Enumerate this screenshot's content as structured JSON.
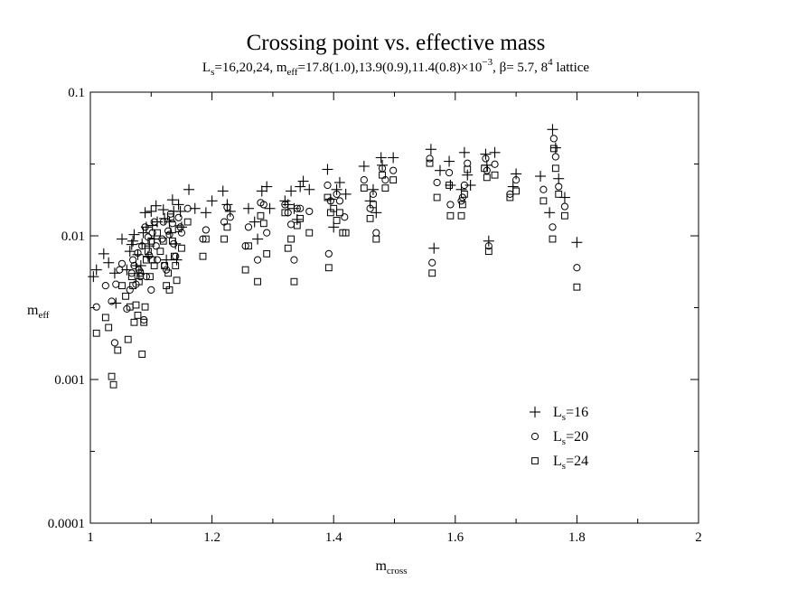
{
  "chart_data": {
    "type": "scatter",
    "title": "Crossing point vs. effective mass",
    "subtitle": {
      "p1": "L",
      "p1_sub": "s",
      "p2": "=16,20,24, m",
      "p2_sub": "eff",
      "p3": "=17.8(1.0),13.9(0.9),11.4(0.8)×10",
      "p3_sup": "−3",
      "p4": ", β= 5.7, 8",
      "p4_sup": "4",
      "p5": " lattice"
    },
    "xlabel": {
      "main": "m",
      "sub": "cross"
    },
    "ylabel": {
      "main": "m",
      "sub": "eff"
    },
    "x_scale": "linear",
    "y_scale": "log",
    "xlim": [
      1,
      2
    ],
    "ylim": [
      0.0001,
      0.1
    ],
    "x_ticks": [
      1,
      1.2,
      1.4,
      1.6,
      1.8,
      2
    ],
    "x_tick_labels": [
      "1",
      "1.2",
      "1.4",
      "1.6",
      "1.8",
      "2"
    ],
    "y_ticks": [
      0.0001,
      0.001,
      0.01,
      0.1
    ],
    "y_tick_labels": [
      "0.0001",
      "0.001",
      "0.01",
      "0.1"
    ],
    "grid": false,
    "legend_position": "lower-right",
    "series": [
      {
        "name": "L",
        "name_sub": "s",
        "name_suffix": "=16",
        "marker": "plus",
        "points": [
          [
            1.005,
            0.0052
          ],
          [
            1.01,
            0.0058
          ],
          [
            1.022,
            0.0075
          ],
          [
            1.03,
            0.0065
          ],
          [
            1.04,
            0.0055
          ],
          [
            1.042,
            0.0034
          ],
          [
            1.052,
            0.0095
          ],
          [
            1.06,
            0.0058
          ],
          [
            1.065,
            0.0078
          ],
          [
            1.068,
            0.0087
          ],
          [
            1.07,
            0.0092
          ],
          [
            1.072,
            0.0102
          ],
          [
            1.075,
            0.0062
          ],
          [
            1.078,
            0.0074
          ],
          [
            1.08,
            0.0055
          ],
          [
            1.083,
            0.0062
          ],
          [
            1.085,
            0.0088
          ],
          [
            1.087,
            0.0105
          ],
          [
            1.09,
            0.0145
          ],
          [
            1.092,
            0.0115
          ],
          [
            1.095,
            0.0072
          ],
          [
            1.097,
            0.0085
          ],
          [
            1.1,
            0.0148
          ],
          [
            1.102,
            0.0118
          ],
          [
            1.105,
            0.0095
          ],
          [
            1.108,
            0.0162
          ],
          [
            1.11,
            0.0125
          ],
          [
            1.12,
            0.0152
          ],
          [
            1.122,
            0.0132
          ],
          [
            1.125,
            0.0068
          ],
          [
            1.13,
            0.0125
          ],
          [
            1.132,
            0.0105
          ],
          [
            1.135,
            0.0178
          ],
          [
            1.137,
            0.0148
          ],
          [
            1.14,
            0.0088
          ],
          [
            1.142,
            0.0068
          ],
          [
            1.145,
            0.0165
          ],
          [
            1.148,
            0.0148
          ],
          [
            1.15,
            0.0115
          ],
          [
            1.162,
            0.021
          ],
          [
            1.172,
            0.0155
          ],
          [
            1.19,
            0.0145
          ],
          [
            1.2,
            0.0175
          ],
          [
            1.218,
            0.0205
          ],
          [
            1.225,
            0.0165
          ],
          [
            1.23,
            0.0148
          ],
          [
            1.26,
            0.0155
          ],
          [
            1.27,
            0.0125
          ],
          [
            1.275,
            0.0095
          ],
          [
            1.282,
            0.0205
          ],
          [
            1.29,
            0.022
          ],
          [
            1.295,
            0.0155
          ],
          [
            1.32,
            0.0175
          ],
          [
            1.325,
            0.0165
          ],
          [
            1.33,
            0.0205
          ],
          [
            1.335,
            0.0155
          ],
          [
            1.34,
            0.013
          ],
          [
            1.345,
            0.022
          ],
          [
            1.35,
            0.024
          ],
          [
            1.36,
            0.021
          ],
          [
            1.39,
            0.029
          ],
          [
            1.395,
            0.018
          ],
          [
            1.4,
            0.0115
          ],
          [
            1.405,
            0.021
          ],
          [
            1.41,
            0.0235
          ],
          [
            1.42,
            0.0195
          ],
          [
            1.45,
            0.0305
          ],
          [
            1.46,
            0.0175
          ],
          [
            1.465,
            0.021
          ],
          [
            1.47,
            0.0145
          ],
          [
            1.478,
            0.035
          ],
          [
            1.48,
            0.031
          ],
          [
            1.498,
            0.035
          ],
          [
            1.56,
            0.04
          ],
          [
            1.565,
            0.0082
          ],
          [
            1.575,
            0.0285
          ],
          [
            1.59,
            0.033
          ],
          [
            1.592,
            0.0225
          ],
          [
            1.61,
            0.021
          ],
          [
            1.615,
            0.038
          ],
          [
            1.62,
            0.0265
          ],
          [
            1.625,
            0.0225
          ],
          [
            1.65,
            0.037
          ],
          [
            1.652,
            0.031
          ],
          [
            1.655,
            0.0092
          ],
          [
            1.665,
            0.038
          ],
          [
            1.695,
            0.022
          ],
          [
            1.7,
            0.027
          ],
          [
            1.74,
            0.026
          ],
          [
            1.755,
            0.0145
          ],
          [
            1.76,
            0.055
          ],
          [
            1.765,
            0.041
          ],
          [
            1.77,
            0.025
          ],
          [
            1.78,
            0.0185
          ],
          [
            1.8,
            0.009
          ]
        ]
      },
      {
        "name": "L",
        "name_sub": "s",
        "name_suffix": "=20",
        "marker": "circle",
        "points": [
          [
            1.01,
            0.0032
          ],
          [
            1.025,
            0.0045
          ],
          [
            1.035,
            0.0035
          ],
          [
            1.04,
            0.0018
          ],
          [
            1.042,
            0.0046
          ],
          [
            1.048,
            0.0058
          ],
          [
            1.052,
            0.0064
          ],
          [
            1.06,
            0.0031
          ],
          [
            1.065,
            0.0042
          ],
          [
            1.068,
            0.0055
          ],
          [
            1.07,
            0.0068
          ],
          [
            1.072,
            0.0062
          ],
          [
            1.075,
            0.0046
          ],
          [
            1.078,
            0.0076
          ],
          [
            1.08,
            0.0058
          ],
          [
            1.082,
            0.0052
          ],
          [
            1.085,
            0.0085
          ],
          [
            1.088,
            0.0026
          ],
          [
            1.09,
            0.0115
          ],
          [
            1.092,
            0.0052
          ],
          [
            1.095,
            0.0098
          ],
          [
            1.097,
            0.0073
          ],
          [
            1.1,
            0.0042
          ],
          [
            1.102,
            0.0105
          ],
          [
            1.105,
            0.0125
          ],
          [
            1.108,
            0.0085
          ],
          [
            1.11,
            0.0068
          ],
          [
            1.118,
            0.0095
          ],
          [
            1.12,
            0.0125
          ],
          [
            1.122,
            0.0062
          ],
          [
            1.125,
            0.0058
          ],
          [
            1.128,
            0.0108
          ],
          [
            1.13,
            0.0102
          ],
          [
            1.132,
            0.0142
          ],
          [
            1.135,
            0.0122
          ],
          [
            1.137,
            0.0088
          ],
          [
            1.14,
            0.0072
          ],
          [
            1.145,
            0.0134
          ],
          [
            1.148,
            0.0115
          ],
          [
            1.15,
            0.0105
          ],
          [
            1.16,
            0.0155
          ],
          [
            1.185,
            0.0095
          ],
          [
            1.19,
            0.011
          ],
          [
            1.22,
            0.0125
          ],
          [
            1.225,
            0.0158
          ],
          [
            1.23,
            0.0135
          ],
          [
            1.255,
            0.0085
          ],
          [
            1.26,
            0.0115
          ],
          [
            1.275,
            0.0068
          ],
          [
            1.28,
            0.017
          ],
          [
            1.285,
            0.0165
          ],
          [
            1.29,
            0.0105
          ],
          [
            1.32,
            0.0165
          ],
          [
            1.325,
            0.0145
          ],
          [
            1.33,
            0.012
          ],
          [
            1.335,
            0.0068
          ],
          [
            1.34,
            0.0155
          ],
          [
            1.345,
            0.0155
          ],
          [
            1.36,
            0.0148
          ],
          [
            1.39,
            0.0225
          ],
          [
            1.392,
            0.0075
          ],
          [
            1.395,
            0.0175
          ],
          [
            1.405,
            0.0195
          ],
          [
            1.41,
            0.0175
          ],
          [
            1.418,
            0.0135
          ],
          [
            1.45,
            0.0245
          ],
          [
            1.46,
            0.0155
          ],
          [
            1.465,
            0.0195
          ],
          [
            1.47,
            0.0105
          ],
          [
            1.48,
            0.0295
          ],
          [
            1.485,
            0.0245
          ],
          [
            1.498,
            0.0285
          ],
          [
            1.558,
            0.0345
          ],
          [
            1.562,
            0.0065
          ],
          [
            1.57,
            0.0235
          ],
          [
            1.59,
            0.0275
          ],
          [
            1.592,
            0.0165
          ],
          [
            1.61,
            0.0175
          ],
          [
            1.612,
            0.0185
          ],
          [
            1.615,
            0.0225
          ],
          [
            1.62,
            0.032
          ],
          [
            1.65,
            0.0345
          ],
          [
            1.652,
            0.0285
          ],
          [
            1.655,
            0.0085
          ],
          [
            1.665,
            0.0315
          ],
          [
            1.69,
            0.0195
          ],
          [
            1.7,
            0.0245
          ],
          [
            1.745,
            0.021
          ],
          [
            1.76,
            0.0115
          ],
          [
            1.762,
            0.0475
          ],
          [
            1.765,
            0.0355
          ],
          [
            1.77,
            0.022
          ],
          [
            1.78,
            0.016
          ],
          [
            1.8,
            0.006
          ]
        ]
      },
      {
        "name": "L",
        "name_sub": "s",
        "name_suffix": "=24",
        "marker": "square",
        "points": [
          [
            1.01,
            0.0021
          ],
          [
            1.025,
            0.0027
          ],
          [
            1.03,
            0.0023
          ],
          [
            1.035,
            0.00105
          ],
          [
            1.038,
            0.00092
          ],
          [
            1.045,
            0.0016
          ],
          [
            1.052,
            0.0045
          ],
          [
            1.058,
            0.0038
          ],
          [
            1.062,
            0.0019
          ],
          [
            1.065,
            0.0032
          ],
          [
            1.068,
            0.0052
          ],
          [
            1.07,
            0.0045
          ],
          [
            1.072,
            0.0025
          ],
          [
            1.075,
            0.0033
          ],
          [
            1.078,
            0.0028
          ],
          [
            1.08,
            0.0048
          ],
          [
            1.082,
            0.0055
          ],
          [
            1.085,
            0.0015
          ],
          [
            1.088,
            0.0025
          ],
          [
            1.09,
            0.0032
          ],
          [
            1.092,
            0.0068
          ],
          [
            1.095,
            0.0078
          ],
          [
            1.098,
            0.0052
          ],
          [
            1.1,
            0.0092
          ],
          [
            1.102,
            0.0068
          ],
          [
            1.105,
            0.0062
          ],
          [
            1.11,
            0.0105
          ],
          [
            1.115,
            0.0078
          ],
          [
            1.12,
            0.0092
          ],
          [
            1.122,
            0.0062
          ],
          [
            1.125,
            0.0045
          ],
          [
            1.128,
            0.0055
          ],
          [
            1.13,
            0.0042
          ],
          [
            1.132,
            0.0135
          ],
          [
            1.135,
            0.0092
          ],
          [
            1.138,
            0.0072
          ],
          [
            1.14,
            0.0062
          ],
          [
            1.142,
            0.0049
          ],
          [
            1.145,
            0.0112
          ],
          [
            1.15,
            0.0082
          ],
          [
            1.16,
            0.0125
          ],
          [
            1.185,
            0.0072
          ],
          [
            1.19,
            0.0095
          ],
          [
            1.22,
            0.0095
          ],
          [
            1.225,
            0.0115
          ],
          [
            1.255,
            0.0058
          ],
          [
            1.26,
            0.0085
          ],
          [
            1.275,
            0.0048
          ],
          [
            1.28,
            0.0138
          ],
          [
            1.285,
            0.0122
          ],
          [
            1.29,
            0.0075
          ],
          [
            1.32,
            0.0145
          ],
          [
            1.325,
            0.0082
          ],
          [
            1.33,
            0.0095
          ],
          [
            1.335,
            0.0048
          ],
          [
            1.34,
            0.0118
          ],
          [
            1.345,
            0.0132
          ],
          [
            1.36,
            0.0105
          ],
          [
            1.39,
            0.0185
          ],
          [
            1.392,
            0.006
          ],
          [
            1.395,
            0.0145
          ],
          [
            1.4,
            0.0155
          ],
          [
            1.405,
            0.0128
          ],
          [
            1.41,
            0.0145
          ],
          [
            1.415,
            0.0105
          ],
          [
            1.42,
            0.0105
          ],
          [
            1.45,
            0.0215
          ],
          [
            1.46,
            0.0132
          ],
          [
            1.465,
            0.0165
          ],
          [
            1.47,
            0.0095
          ],
          [
            1.48,
            0.0265
          ],
          [
            1.485,
            0.0215
          ],
          [
            1.498,
            0.0245
          ],
          [
            1.558,
            0.032
          ],
          [
            1.562,
            0.0055
          ],
          [
            1.57,
            0.0185
          ],
          [
            1.59,
            0.0225
          ],
          [
            1.592,
            0.0138
          ],
          [
            1.61,
            0.0138
          ],
          [
            1.612,
            0.0165
          ],
          [
            1.615,
            0.0195
          ],
          [
            1.62,
            0.029
          ],
          [
            1.648,
            0.0295
          ],
          [
            1.652,
            0.0255
          ],
          [
            1.655,
            0.0078
          ],
          [
            1.665,
            0.0265
          ],
          [
            1.69,
            0.0185
          ],
          [
            1.7,
            0.0205
          ],
          [
            1.745,
            0.0175
          ],
          [
            1.76,
            0.0095
          ],
          [
            1.762,
            0.0405
          ],
          [
            1.765,
            0.0295
          ],
          [
            1.77,
            0.0195
          ],
          [
            1.78,
            0.0138
          ],
          [
            1.8,
            0.0044
          ]
        ]
      }
    ]
  }
}
